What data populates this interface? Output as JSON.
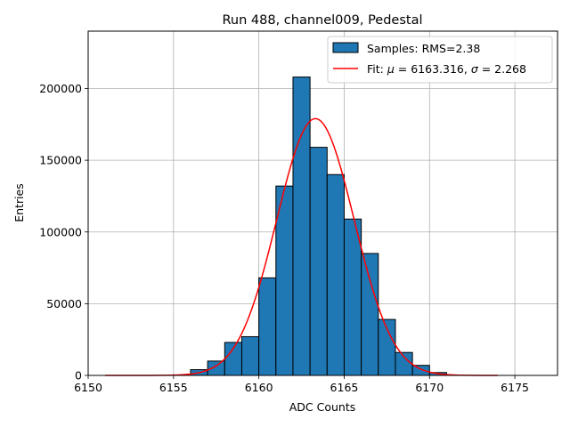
{
  "chart_data": {
    "type": "bar",
    "title": "Run 488, channel009, Pedestal",
    "xlabel": "ADC Counts",
    "ylabel": "Entries",
    "xlim": [
      6150,
      6177.5
    ],
    "ylim": [
      0,
      240000
    ],
    "xticks": [
      6150,
      6155,
      6160,
      6165,
      6170,
      6175
    ],
    "yticks": [
      0,
      50000,
      100000,
      150000,
      200000
    ],
    "grid": true,
    "legend_position": "top-right",
    "histogram": {
      "name": "Samples: RMS=2.38",
      "color": "#1f77b4",
      "bin_width": 1,
      "bins": [
        {
          "left": 6156,
          "value": 4000
        },
        {
          "left": 6157,
          "value": 10000
        },
        {
          "left": 6158,
          "value": 23000
        },
        {
          "left": 6159,
          "value": 27000
        },
        {
          "left": 6160,
          "value": 68000
        },
        {
          "left": 6161,
          "value": 132000
        },
        {
          "left": 6162,
          "value": 208000
        },
        {
          "left": 6163,
          "value": 159000
        },
        {
          "left": 6164,
          "value": 140000
        },
        {
          "left": 6165,
          "value": 109000
        },
        {
          "left": 6166,
          "value": 85000
        },
        {
          "left": 6167,
          "value": 39000
        },
        {
          "left": 6168,
          "value": 16000
        },
        {
          "left": 6169,
          "value": 7000
        },
        {
          "left": 6170,
          "value": 2000
        }
      ]
    },
    "fit": {
      "name": "Fit: μ = 6163.316, σ = 2.268",
      "label_prefix": "Fit: ",
      "mu_symbol": "μ",
      "mu_text": " = 6163.316, ",
      "sigma_symbol": "σ",
      "sigma_text": " = 2.268",
      "color": "#ff0000",
      "mu": 6163.316,
      "sigma": 2.268,
      "amplitude": 179000,
      "x_range": [
        6151,
        6174
      ]
    }
  }
}
